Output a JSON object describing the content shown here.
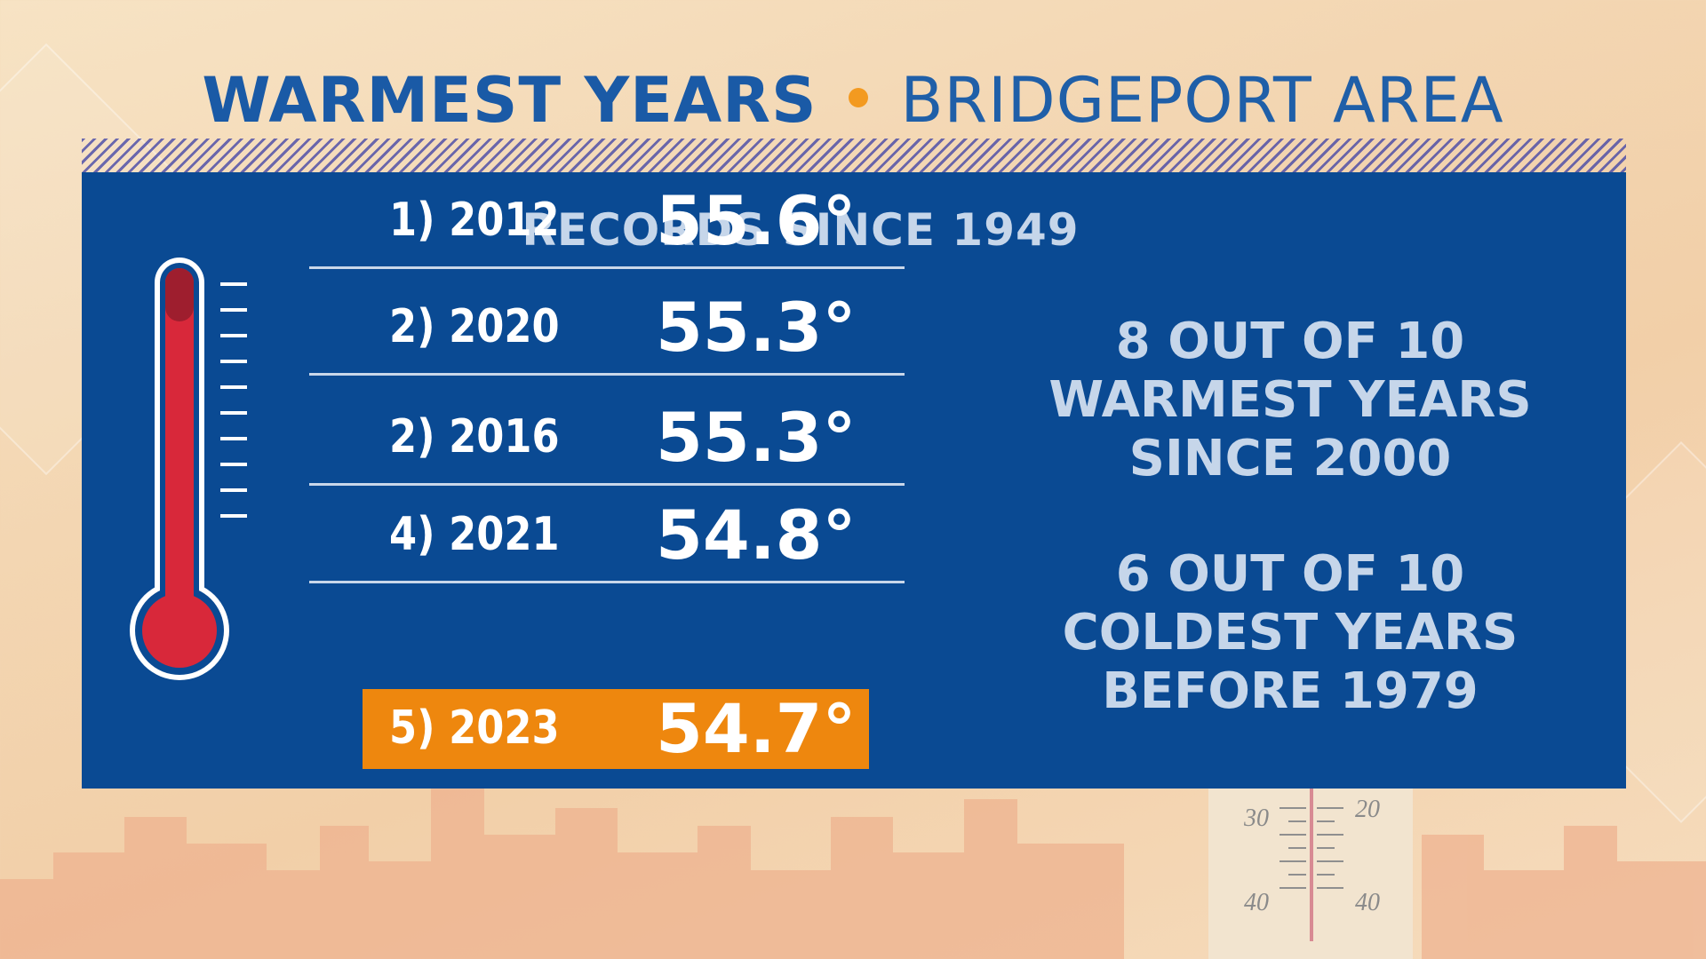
{
  "header": {
    "title_bold": "WARMEST YEARS",
    "title_light": "BRIDGEPORT AREA"
  },
  "panel": {
    "subtitle": "RECORDS SINCE 1949",
    "rankings": [
      {
        "rank": "1) 2012",
        "temp": "55.6°"
      },
      {
        "rank": "2) 2020",
        "temp": "55.3°"
      },
      {
        "rank": "2) 2016",
        "temp": "55.3°"
      },
      {
        "rank": "4) 2021",
        "temp": "54.8°"
      },
      {
        "rank": "5) 2023",
        "temp": "54.7°"
      }
    ],
    "stat_warm": [
      "8 OUT OF 10",
      "WARMEST YEARS",
      "SINCE 2000"
    ],
    "stat_cold": [
      "6 OUT OF 10",
      "COLDEST YEARS",
      "BEFORE 1979"
    ]
  },
  "background_thermometer": {
    "left_scale": [
      "30",
      "40"
    ],
    "right_scale": [
      "20",
      "40"
    ]
  },
  "colors": {
    "panel": "#0a4a93",
    "accent": "#ee870e",
    "title": "#1a5aa6",
    "mercury": "#d8283a"
  },
  "icons": [
    "thermometer-icon"
  ]
}
